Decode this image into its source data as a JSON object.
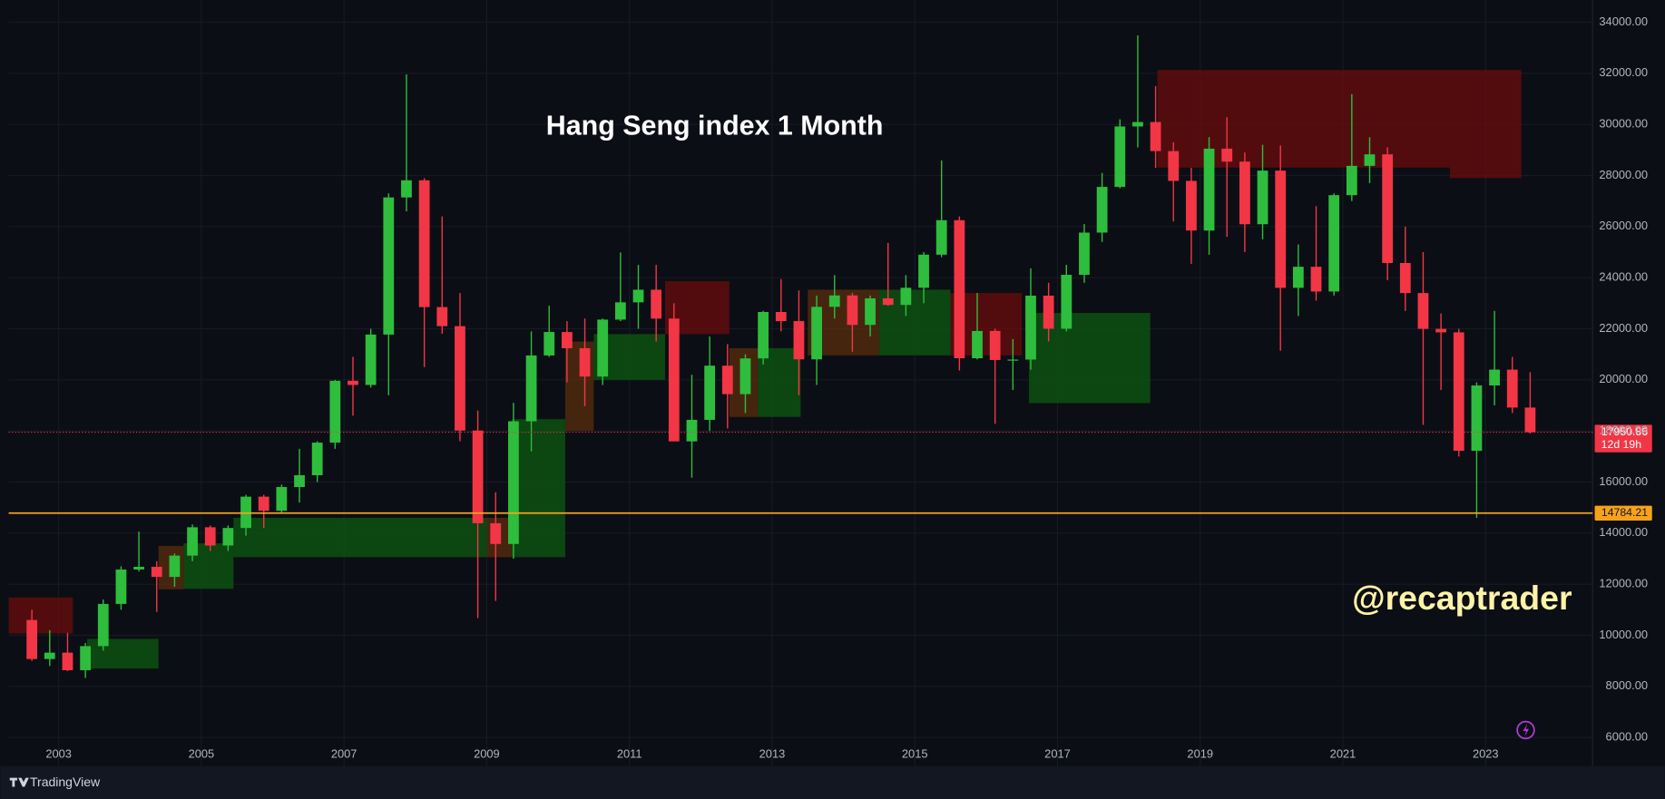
{
  "chart_data": {
    "type": "candlestick",
    "title": "Hang Seng index 1 Month",
    "watermark": "@recaptrader",
    "brand": "TradingView",
    "countdown": "12d 19h",
    "up_color": "#2ebd3c",
    "down_color": "#f23645",
    "x": [
      2002.625,
      2002.875,
      2003.125,
      2003.375,
      2003.625,
      2003.875,
      2004.125,
      2004.375,
      2004.625,
      2004.875,
      2005.125,
      2005.375,
      2005.625,
      2005.875,
      2006.125,
      2006.375,
      2006.625,
      2006.875,
      2007.125,
      2007.375,
      2007.625,
      2007.875,
      2008.125,
      2008.375,
      2008.625,
      2008.875,
      2009.125,
      2009.375,
      2009.625,
      2009.875,
      2010.125,
      2010.375,
      2010.625,
      2010.875,
      2011.125,
      2011.375,
      2011.625,
      2011.875,
      2012.125,
      2012.375,
      2012.625,
      2012.875,
      2013.125,
      2013.375,
      2013.625,
      2013.875,
      2014.125,
      2014.375,
      2014.625,
      2014.875,
      2015.125,
      2015.375,
      2015.625,
      2015.875,
      2016.125,
      2016.375,
      2016.625,
      2016.875,
      2017.125,
      2017.375,
      2017.625,
      2017.875,
      2018.125,
      2018.375,
      2018.625,
      2018.875,
      2019.125,
      2019.375,
      2019.625,
      2019.875,
      2020.125,
      2020.375,
      2020.625,
      2020.875,
      2021.125,
      2021.375,
      2021.625,
      2021.875,
      2022.125,
      2022.375,
      2022.625,
      2022.875,
      2023.125,
      2023.375,
      2023.625
    ],
    "open": [
      10600,
      9072,
      9321,
      8634,
      9577,
      11229,
      12576,
      12682,
      12286,
      13120,
      14230,
      13516,
      14201,
      15428,
      14876,
      15805,
      16267,
      17543,
      19965,
      19801,
      21773,
      27142,
      27813,
      22849,
      22102,
      18016,
      14387,
      13576,
      18379,
      20955,
      21873,
      21239,
      20129,
      22359,
      23035,
      23528,
      22398,
      17592,
      18434,
      20556,
      19441,
      20840,
      22657,
      22300,
      20803,
      22859,
      23306,
      22151,
      23191,
      22933,
      23605,
      24901,
      26250,
      20846,
      21914,
      20777,
      20794,
      23297,
      22001,
      24112,
      25765,
      27554,
      29919,
      30093,
      28955,
      27789,
      25846,
      29051,
      28543,
      26092,
      28190,
      23603,
      24427,
      23459,
      27231,
      28378,
      28828,
      24576,
      23398,
      21997,
      21860,
      17223,
      19781,
      20400,
      18916
    ],
    "high": [
      11000,
      10200,
      10100,
      9700,
      11400,
      12700,
      14058,
      12900,
      13200,
      14339,
      14300,
      14300,
      15500,
      15500,
      15900,
      17300,
      17600,
      20000,
      20900,
      22000,
      27300,
      31958,
      27900,
      26400,
      23400,
      18800,
      15600,
      19100,
      21900,
      22900,
      22300,
      22400,
      22400,
      24990,
      24500,
      24500,
      23000,
      20200,
      21700,
      21400,
      21000,
      22700,
      23944,
      23500,
      23300,
      24100,
      23400,
      23300,
      25362,
      24100,
      25000,
      28588,
      26400,
      23400,
      22000,
      21600,
      24364,
      23800,
      24500,
      26100,
      28100,
      30200,
      33484,
      31500,
      29300,
      28300,
      29500,
      30280,
      28900,
      29200,
      29174,
      25300,
      26800,
      27300,
      31183,
      29500,
      29100,
      26000,
      25000,
      22600,
      22000,
      19900,
      22700,
      20900,
      20300
    ],
    "low": [
      9000,
      8800,
      8600,
      8330,
      9400,
      11000,
      12500,
      10917,
      11900,
      12900,
      13300,
      13300,
      13900,
      14200,
      14800,
      15200,
      16000,
      17300,
      18600,
      19700,
      19400,
      26600,
      20500,
      21800,
      17600,
      10676,
      11345,
      13000,
      17200,
      20900,
      19900,
      18971,
      19800,
      22300,
      22000,
      21500,
      17600,
      16170,
      18000,
      18100,
      18700,
      20600,
      21900,
      19400,
      19800,
      22400,
      21100,
      21700,
      22900,
      22500,
      23000,
      24800,
      20368,
      20800,
      18279,
      19600,
      20400,
      21500,
      21900,
      23800,
      25400,
      27500,
      29100,
      28300,
      26200,
      24541,
      24900,
      25600,
      25000,
      25500,
      21139,
      22500,
      23100,
      23300,
      27000,
      27700,
      23900,
      22700,
      18235,
      19600,
      17000,
      14597,
      19000,
      18700,
      17900
    ],
    "close": [
      9072,
      9321,
      8634,
      9577,
      11229,
      12576,
      12682,
      12286,
      13120,
      14230,
      13516,
      14201,
      15428,
      14876,
      15805,
      16267,
      17543,
      19965,
      19801,
      21773,
      27142,
      27813,
      22849,
      22102,
      18016,
      14387,
      13576,
      18379,
      20955,
      21873,
      21239,
      20129,
      22359,
      23035,
      23528,
      22398,
      17592,
      18434,
      20556,
      19441,
      20840,
      22657,
      22300,
      20803,
      22859,
      23306,
      22151,
      23191,
      22933,
      23605,
      24901,
      26250,
      20846,
      21914,
      20777,
      20794,
      23297,
      22001,
      24112,
      25765,
      27554,
      29919,
      30093,
      28955,
      27789,
      25846,
      29051,
      28543,
      26092,
      28190,
      23603,
      24427,
      23459,
      27231,
      28378,
      28828,
      24576,
      23398,
      21997,
      21860,
      17223,
      19781,
      20400,
      18916,
      17950.86
    ],
    "cloud": [
      {
        "x0": 2002.3,
        "x1": 2003.2,
        "lo": 10070,
        "hi": 11480,
        "color": "#6b0c0c"
      },
      {
        "x0": 2003.4,
        "x1": 2004.4,
        "lo": 8700,
        "hi": 9860,
        "color": "#0c5a10"
      },
      {
        "x0": 2004.4,
        "x1": 2004.75,
        "lo": 11800,
        "hi": 13500,
        "color": "#5a2d0c"
      },
      {
        "x0": 2004.75,
        "x1": 2005.45,
        "lo": 11820,
        "hi": 13600,
        "color": "#0c5a10"
      },
      {
        "x0": 2005.45,
        "x1": 2009.0,
        "lo": 13060,
        "hi": 14600,
        "color": "#0c5a10"
      },
      {
        "x0": 2009.0,
        "x1": 2009.35,
        "lo": 13060,
        "hi": 14600,
        "color": "#5a2d0c"
      },
      {
        "x0": 2009.35,
        "x1": 2010.1,
        "lo": 13060,
        "hi": 18460,
        "color": "#0c5a10"
      },
      {
        "x0": 2010.1,
        "x1": 2010.5,
        "lo": 18000,
        "hi": 21500,
        "color": "#5a2d0c"
      },
      {
        "x0": 2010.5,
        "x1": 2011.5,
        "lo": 20000,
        "hi": 21790,
        "color": "#0c5a10"
      },
      {
        "x0": 2011.5,
        "x1": 2012.4,
        "lo": 21790,
        "hi": 23860,
        "color": "#6b0c0c"
      },
      {
        "x0": 2012.4,
        "x1": 2012.8,
        "lo": 18550,
        "hi": 21240,
        "color": "#5a2d0c"
      },
      {
        "x0": 2012.8,
        "x1": 2013.4,
        "lo": 18550,
        "hi": 21240,
        "color": "#0c5a10"
      },
      {
        "x0": 2013.5,
        "x1": 2014.5,
        "lo": 20960,
        "hi": 23530,
        "color": "#5a2d0c"
      },
      {
        "x0": 2014.5,
        "x1": 2015.5,
        "lo": 20960,
        "hi": 23530,
        "color": "#0c5a10"
      },
      {
        "x0": 2015.5,
        "x1": 2016.5,
        "lo": 20960,
        "hi": 23400,
        "color": "#6b0c0c"
      },
      {
        "x0": 2016.6,
        "x1": 2018.3,
        "lo": 19090,
        "hi": 22620,
        "color": "#0c5a10"
      },
      {
        "x0": 2018.4,
        "x1": 2022.5,
        "lo": 28310,
        "hi": 32130,
        "color": "#6b0c0c"
      },
      {
        "x0": 2022.5,
        "x1": 2023.5,
        "lo": 27900,
        "hi": 32130,
        "color": "#6b0c0c"
      }
    ],
    "lines": [
      {
        "value": 17950.86,
        "color": "#f23645",
        "style": "dotted"
      },
      {
        "value": 14784.21,
        "color": "#f7a21b",
        "style": "solid"
      }
    ],
    "xlim": [
      2002.3,
      2024.5
    ],
    "xticks": [
      2003,
      2005,
      2007,
      2009,
      2011,
      2013,
      2015,
      2017,
      2019,
      2021,
      2023
    ],
    "ylim": [
      4880,
      34870
    ],
    "yticks": [
      {
        "value": 6000,
        "label": "6000.00"
      },
      {
        "value": 8000,
        "label": "8000.00"
      },
      {
        "value": 10000,
        "label": "10000.00"
      },
      {
        "value": 12000,
        "label": "12000.00"
      },
      {
        "value": 14000,
        "label": "14000.00"
      },
      {
        "value": 16000,
        "label": "16000.00"
      },
      {
        "value": 18000,
        "label": "18000.00"
      },
      {
        "value": 20000,
        "label": "20000.00"
      },
      {
        "value": 22000,
        "label": "22000.00"
      },
      {
        "value": 24000,
        "label": "24000.00"
      },
      {
        "value": 26000,
        "label": "26000.00"
      },
      {
        "value": 28000,
        "label": "28000.00"
      },
      {
        "value": 30000,
        "label": "30000.00"
      },
      {
        "value": 32000,
        "label": "32000.00"
      },
      {
        "value": 34000,
        "label": "34000.00"
      }
    ],
    "grid": true
  }
}
